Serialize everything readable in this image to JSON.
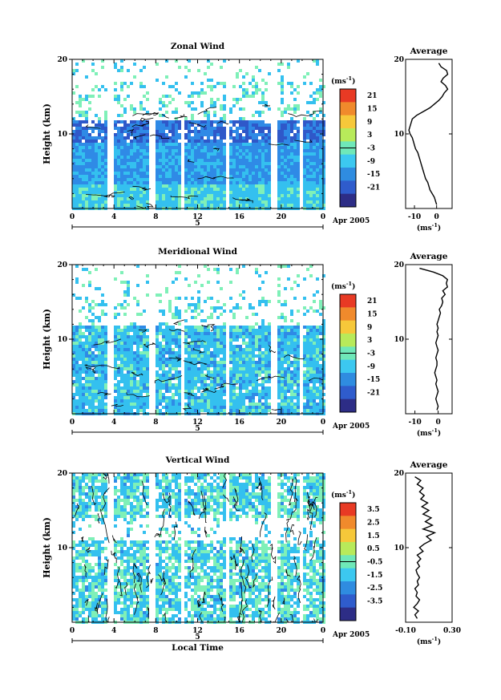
{
  "chart_data": [
    {
      "type": "heatmap",
      "title": "Zonal Wind",
      "ylabel": "Height (km)",
      "yticks": [
        "10",
        "20"
      ],
      "ylim": [
        0,
        20
      ],
      "xticks": [
        "0",
        "4",
        "8",
        "12",
        "16",
        "20",
        "0"
      ],
      "xlim": [
        0,
        24
      ],
      "date_marker": "5",
      "date_label": "Apr 2005",
      "colorbar": {
        "unit_label": "(ms",
        "unit_exp": "-1",
        "unit_close": ")",
        "ticks": [
          "21",
          "15",
          "9",
          "3",
          "-3",
          "-9",
          "-15",
          "-21"
        ],
        "range": [
          -24,
          24
        ],
        "zero_line": 0
      },
      "average_profile": {
        "title": "Average",
        "xticks": [
          "-10",
          "0"
        ],
        "xlim": [
          -14,
          7
        ],
        "xunit": "(ms",
        "xunit_exp": "-1",
        "xunit_close": ")",
        "heights": [
          0.5,
          1,
          1.5,
          2,
          2.5,
          3,
          3.5,
          4,
          4.5,
          5,
          5.5,
          6,
          6.5,
          7,
          7.5,
          8,
          8.5,
          9,
          9.5,
          10,
          10.5,
          11,
          11.5,
          12,
          12.5,
          13,
          13.5,
          14,
          14.5,
          15,
          15.5,
          16,
          16.5,
          17,
          17.5,
          18,
          18.5,
          19,
          19.5
        ],
        "values": [
          0,
          -0.5,
          -1,
          -2,
          -3,
          -3.5,
          -4,
          -5,
          -5.5,
          -6,
          -6.5,
          -7,
          -7.5,
          -8,
          -8.5,
          -9.5,
          -10,
          -10.5,
          -11,
          -12,
          -12.5,
          -12,
          -11.5,
          -11,
          -9,
          -6,
          -3,
          -1,
          1,
          2.5,
          3.5,
          5,
          4,
          2,
          3,
          5,
          4.5,
          2,
          1
        ]
      }
    },
    {
      "type": "heatmap",
      "title": "Meridional Wind",
      "ylabel": "Height (km)",
      "yticks": [
        "10",
        "20"
      ],
      "ylim": [
        0,
        20
      ],
      "xticks": [
        "0",
        "4",
        "8",
        "12",
        "16",
        "20",
        "0"
      ],
      "xlim": [
        0,
        24
      ],
      "date_marker": "5",
      "date_label": "Apr 2005",
      "colorbar": {
        "unit_label": "(ms",
        "unit_exp": "-1",
        "unit_close": ")",
        "ticks": [
          "21",
          "15",
          "9",
          "3",
          "-3",
          "-9",
          "-15",
          "-21"
        ],
        "range": [
          -24,
          24
        ],
        "zero_line": 0
      },
      "average_profile": {
        "title": "Average",
        "xticks": [
          "-10",
          "0"
        ],
        "xlim": [
          -14,
          6
        ],
        "xunit": "(ms",
        "xunit_exp": "-1",
        "xunit_close": ")",
        "heights": [
          0.5,
          1,
          1.5,
          2,
          2.5,
          3,
          3.5,
          4,
          4.5,
          5,
          5.5,
          6,
          6.5,
          7,
          7.5,
          8,
          8.5,
          9,
          9.5,
          10,
          10.5,
          11,
          11.5,
          12,
          12.5,
          13,
          13.5,
          14,
          14.5,
          15,
          15.5,
          16,
          16.5,
          17,
          17.5,
          18,
          18.5,
          19,
          19.5
        ],
        "values": [
          -0.5,
          0,
          -0.5,
          -1,
          -0.5,
          0,
          -0.5,
          -1,
          -0.5,
          -1,
          -1.5,
          -1,
          -0.5,
          -0.5,
          -1,
          -0.5,
          0,
          -0.5,
          -1,
          -0.5,
          0,
          -0.5,
          0,
          -0.5,
          0,
          0.5,
          1,
          0.5,
          1.5,
          2,
          1.5,
          3,
          2,
          4,
          3.5,
          4,
          2,
          -2,
          -8
        ]
      }
    },
    {
      "type": "heatmap",
      "title": "Vertical Wind",
      "ylabel": "Height (km)",
      "yticks": [
        "10",
        "20"
      ],
      "ylim": [
        0,
        20
      ],
      "xticks": [
        "0",
        "4",
        "8",
        "12",
        "16",
        "20",
        "0"
      ],
      "xlim": [
        0,
        24
      ],
      "date_marker": "5",
      "date_label": "Apr 2005",
      "xlabel": "Local Time",
      "colorbar": {
        "unit_label": "(ms",
        "unit_exp": "-1",
        "unit_close": ")",
        "ticks": [
          "3.5",
          "2.5",
          "1.5",
          "0.5",
          "-0.5",
          "-1.5",
          "-2.5",
          "-3.5"
        ],
        "range": [
          -4,
          4
        ],
        "zero_line": 0
      },
      "average_profile": {
        "title": "Average",
        "xticks": [
          "-0.10",
          "0.30"
        ],
        "xlim": [
          -0.1,
          0.3
        ],
        "xunit": "(ms",
        "xunit_exp": "-1",
        "xunit_close": ")",
        "heights": [
          0.5,
          1,
          1.5,
          2,
          2.5,
          3,
          3.5,
          4,
          4.5,
          5,
          5.5,
          6,
          6.5,
          7,
          7.5,
          8,
          8.5,
          9,
          9.5,
          10,
          10.5,
          11,
          11.5,
          12,
          12.5,
          13,
          13.5,
          14,
          14.5,
          15,
          15.5,
          16,
          16.5,
          17,
          17.5,
          18,
          18.5,
          19,
          19.5
        ],
        "values": [
          0.0,
          -0.02,
          0.01,
          -0.03,
          0.0,
          0.02,
          -0.01,
          0.0,
          -0.02,
          0.01,
          0.0,
          0.02,
          0.0,
          -0.01,
          0.02,
          0.0,
          0.03,
          0.0,
          0.05,
          0.02,
          0.06,
          0.12,
          0.08,
          0.15,
          0.05,
          0.13,
          0.07,
          0.12,
          0.05,
          0.1,
          0.04,
          0.09,
          0.03,
          0.06,
          0.02,
          0.05,
          0.0,
          0.03,
          -0.02
        ]
      }
    }
  ]
}
